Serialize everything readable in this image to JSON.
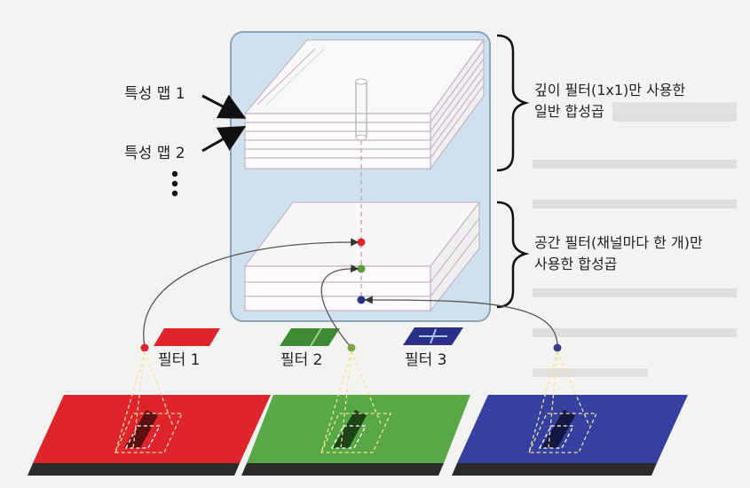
{
  "labels": {
    "feature_map_1": "특성 맵 1",
    "feature_map_2": "특성 맵 2",
    "depthwise_text": [
      "깊이 필터(1x1)만 사용한",
      "일반 합성곱"
    ],
    "spatial_text": [
      "공간 필터(채널마다 한 개)만",
      "사용한 합성곱"
    ],
    "filter_1": "필터 1",
    "filter_2": "필터 2",
    "filter_3": "필터 3"
  },
  "colors": {
    "red": "#e0242c",
    "green": "#4f9a3a",
    "blue": "#2b2f86",
    "panel": "#cfe0ee",
    "panel_border": "#8aa6bf"
  },
  "icons": [
    "ellipsis-vertical-icon",
    "curly-brace-icon",
    "arrow-icon"
  ]
}
